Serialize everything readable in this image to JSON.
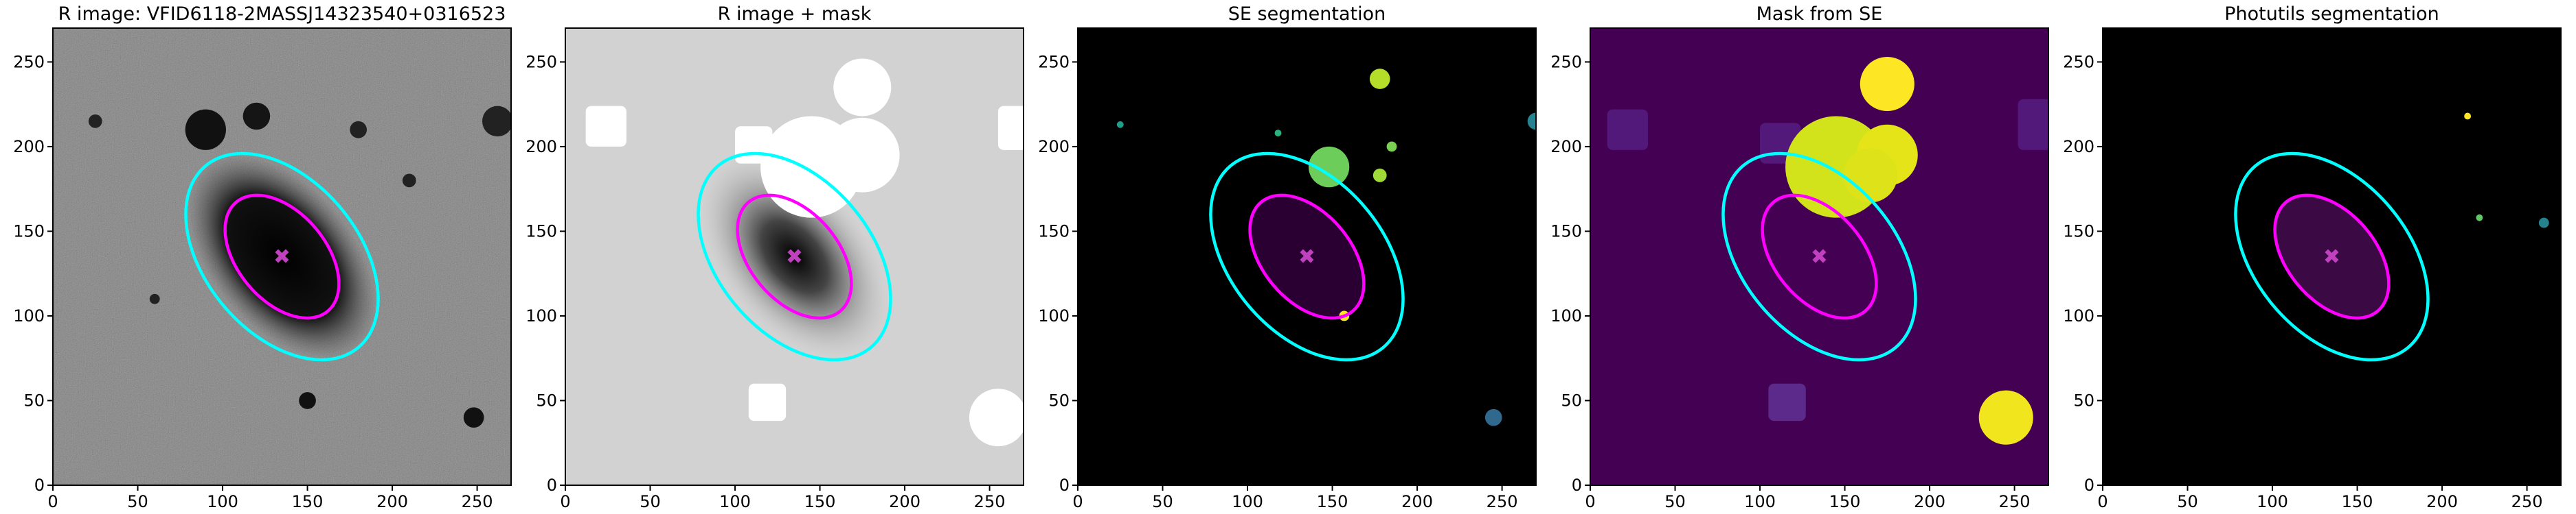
{
  "chart_data": [
    {
      "type": "image",
      "title": "R image: VFID6118-2MASSJ14323540+0316523",
      "xlim": [
        0,
        270
      ],
      "ylim": [
        0,
        270
      ],
      "xticks": [
        0,
        50,
        100,
        150,
        200,
        250
      ],
      "yticks": [
        0,
        50,
        100,
        150,
        200,
        250
      ]
    },
    {
      "type": "image",
      "title": "R image + mask",
      "xlim": [
        0,
        270
      ],
      "ylim": [
        0,
        270
      ],
      "xticks": [
        0,
        50,
        100,
        150,
        200,
        250
      ],
      "yticks": [
        0,
        50,
        100,
        150,
        200,
        250
      ]
    },
    {
      "type": "image",
      "title": "SE segmentation",
      "xlim": [
        0,
        270
      ],
      "ylim": [
        0,
        270
      ],
      "xticks": [
        0,
        50,
        100,
        150,
        200,
        250
      ],
      "yticks": [
        0,
        50,
        100,
        150,
        200,
        250
      ]
    },
    {
      "type": "image",
      "title": "Mask from SE",
      "xlim": [
        0,
        270
      ],
      "ylim": [
        0,
        270
      ],
      "xticks": [
        0,
        50,
        100,
        150,
        200,
        250
      ],
      "yticks": [
        0,
        50,
        100,
        150,
        200,
        250
      ]
    },
    {
      "type": "image",
      "title": "Photutils segmentation",
      "xlim": [
        0,
        270
      ],
      "ylim": [
        0,
        270
      ],
      "xticks": [
        0,
        50,
        100,
        150,
        200,
        250
      ],
      "yticks": [
        0,
        50,
        100,
        150,
        200,
        250
      ]
    }
  ]
}
